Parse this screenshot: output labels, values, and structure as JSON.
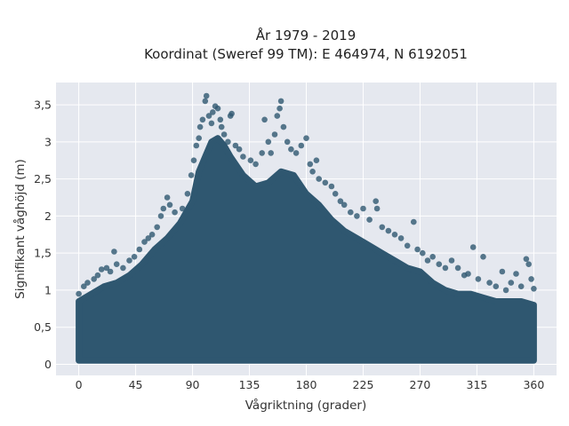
{
  "chart_data": {
    "type": "scatter",
    "title_lines": [
      "År 1979 - 2019",
      "Koordinat (Sweref 99 TM): E 464974, N 6192051"
    ],
    "xlabel": "Vågriktning (grader)",
    "ylabel": "Signifikant våghöjd (m)",
    "xlim": [
      -18,
      378
    ],
    "ylim": [
      -0.15,
      3.8
    ],
    "x_ticks": [
      0,
      45,
      90,
      135,
      180,
      225,
      270,
      315,
      360
    ],
    "x_tick_labels": [
      "0",
      "45",
      "90",
      "135",
      "180",
      "225",
      "270",
      "315",
      "360"
    ],
    "y_ticks": [
      0,
      0.5,
      1,
      1.5,
      2,
      2.5,
      3,
      3.5
    ],
    "y_tick_labels": [
      "0",
      "0,5",
      "1",
      "1,5",
      "2",
      "2,5",
      "3",
      "3,5"
    ],
    "grid": true,
    "marker_color": "#2f5770",
    "plot_background": "#e5e8ef",
    "envelope": {
      "x": [
        0,
        10,
        20,
        30,
        40,
        50,
        60,
        70,
        80,
        90,
        95,
        100,
        105,
        110,
        115,
        120,
        130,
        140,
        150,
        160,
        170,
        180,
        190,
        200,
        210,
        220,
        230,
        240,
        250,
        260,
        270,
        280,
        290,
        300,
        310,
        320,
        330,
        340,
        350,
        360
      ],
      "upper": [
        0.85,
        0.95,
        1.05,
        1.1,
        1.2,
        1.35,
        1.55,
        1.7,
        1.9,
        2.2,
        2.6,
        2.8,
        3.0,
        3.05,
        2.95,
        2.8,
        2.55,
        2.4,
        2.45,
        2.6,
        2.55,
        2.3,
        2.15,
        1.95,
        1.8,
        1.7,
        1.6,
        1.5,
        1.4,
        1.3,
        1.25,
        1.1,
        1.0,
        0.95,
        0.95,
        0.9,
        0.85,
        0.85,
        0.85,
        0.8
      ],
      "lower": 0.05
    },
    "outliers": [
      [
        0,
        0.95
      ],
      [
        4,
        1.05
      ],
      [
        7,
        1.1
      ],
      [
        12,
        1.15
      ],
      [
        15,
        1.2
      ],
      [
        18,
        1.28
      ],
      [
        22,
        1.3
      ],
      [
        25,
        1.25
      ],
      [
        28,
        1.52
      ],
      [
        30,
        1.35
      ],
      [
        35,
        1.3
      ],
      [
        40,
        1.4
      ],
      [
        44,
        1.45
      ],
      [
        48,
        1.55
      ],
      [
        52,
        1.65
      ],
      [
        55,
        1.7
      ],
      [
        58,
        1.75
      ],
      [
        62,
        1.85
      ],
      [
        65,
        2.0
      ],
      [
        67,
        2.1
      ],
      [
        70,
        2.25
      ],
      [
        72,
        2.15
      ],
      [
        76,
        2.05
      ],
      [
        82,
        2.1
      ],
      [
        86,
        2.3
      ],
      [
        89,
        2.55
      ],
      [
        91,
        2.75
      ],
      [
        93,
        2.95
      ],
      [
        95,
        3.05
      ],
      [
        96,
        3.2
      ],
      [
        98,
        3.3
      ],
      [
        100,
        3.55
      ],
      [
        101,
        3.62
      ],
      [
        103,
        3.35
      ],
      [
        105,
        3.25
      ],
      [
        106,
        3.4
      ],
      [
        108,
        3.48
      ],
      [
        110,
        3.45
      ],
      [
        112,
        3.3
      ],
      [
        113,
        3.2
      ],
      [
        115,
        3.1
      ],
      [
        118,
        3.0
      ],
      [
        120,
        3.35
      ],
      [
        121,
        3.38
      ],
      [
        124,
        2.95
      ],
      [
        127,
        2.9
      ],
      [
        130,
        2.8
      ],
      [
        136,
        2.75
      ],
      [
        140,
        2.7
      ],
      [
        145,
        2.85
      ],
      [
        147,
        3.3
      ],
      [
        150,
        3.0
      ],
      [
        152,
        2.85
      ],
      [
        155,
        3.1
      ],
      [
        157,
        3.35
      ],
      [
        159,
        3.45
      ],
      [
        160,
        3.55
      ],
      [
        162,
        3.2
      ],
      [
        165,
        3.0
      ],
      [
        168,
        2.9
      ],
      [
        172,
        2.85
      ],
      [
        176,
        2.95
      ],
      [
        180,
        3.05
      ],
      [
        183,
        2.7
      ],
      [
        185,
        2.6
      ],
      [
        188,
        2.75
      ],
      [
        190,
        2.5
      ],
      [
        195,
        2.45
      ],
      [
        200,
        2.4
      ],
      [
        203,
        2.3
      ],
      [
        207,
        2.2
      ],
      [
        210,
        2.15
      ],
      [
        215,
        2.05
      ],
      [
        220,
        2.0
      ],
      [
        225,
        2.1
      ],
      [
        230,
        1.95
      ],
      [
        235,
        2.2
      ],
      [
        236,
        2.1
      ],
      [
        240,
        1.85
      ],
      [
        245,
        1.8
      ],
      [
        250,
        1.75
      ],
      [
        255,
        1.7
      ],
      [
        260,
        1.6
      ],
      [
        265,
        1.92
      ],
      [
        268,
        1.55
      ],
      [
        272,
        1.5
      ],
      [
        276,
        1.4
      ],
      [
        280,
        1.45
      ],
      [
        285,
        1.35
      ],
      [
        290,
        1.3
      ],
      [
        295,
        1.4
      ],
      [
        300,
        1.3
      ],
      [
        305,
        1.2
      ],
      [
        308,
        1.22
      ],
      [
        312,
        1.58
      ],
      [
        316,
        1.15
      ],
      [
        320,
        1.45
      ],
      [
        325,
        1.1
      ],
      [
        330,
        1.05
      ],
      [
        335,
        1.25
      ],
      [
        338,
        1.0
      ],
      [
        342,
        1.1
      ],
      [
        346,
        1.22
      ],
      [
        350,
        1.05
      ],
      [
        354,
        1.42
      ],
      [
        356,
        1.35
      ],
      [
        358,
        1.15
      ],
      [
        360,
        1.02
      ]
    ]
  }
}
